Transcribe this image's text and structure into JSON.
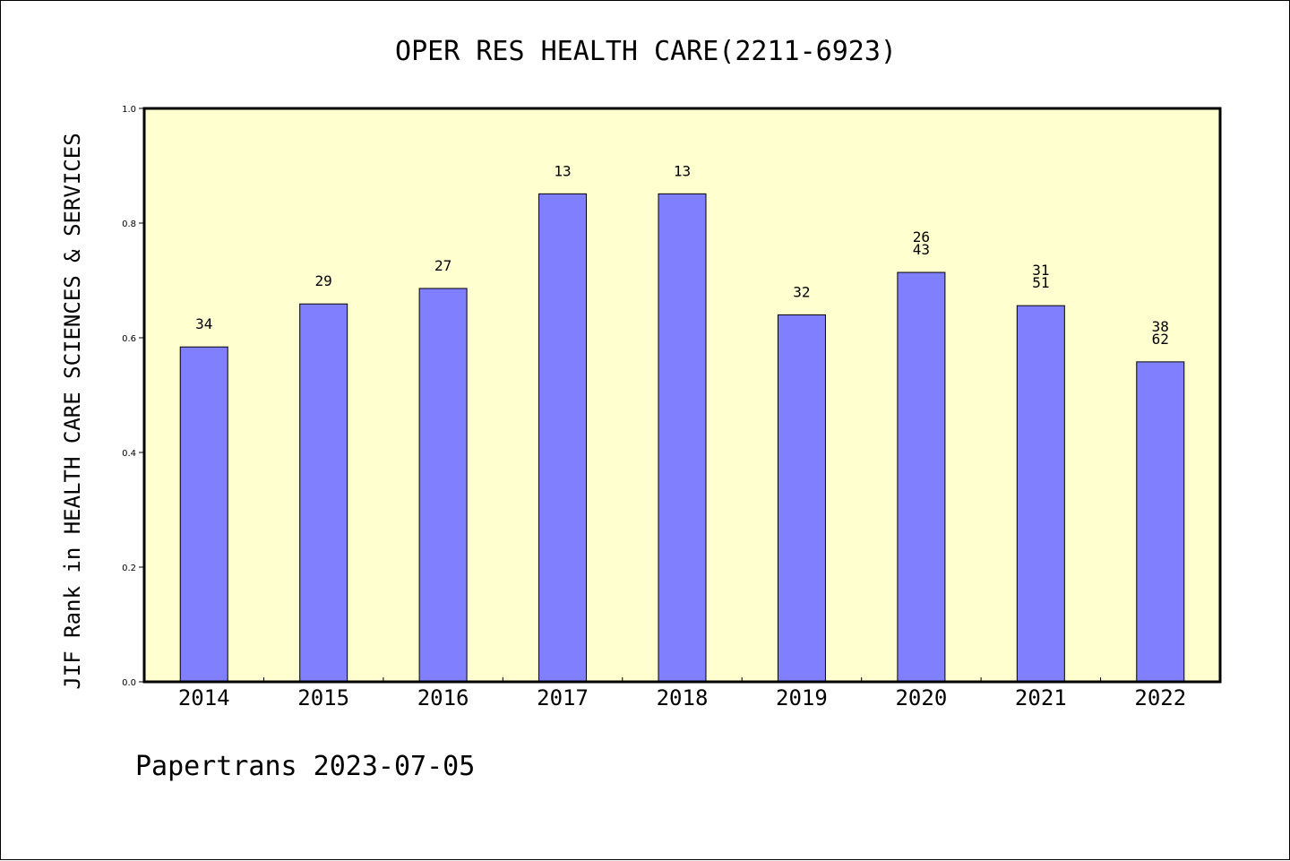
{
  "chart_data": {
    "type": "bar",
    "title": "OPER RES HEALTH CARE(2211-6923)",
    "ylabel": "JIF Rank in HEALTH CARE SCIENCES & SERVICES",
    "xlabel": "",
    "ylim": [
      0,
      1.0
    ],
    "yticks": [
      "0.0",
      "0.2",
      "0.4",
      "0.6",
      "0.8",
      "1.0"
    ],
    "categories": [
      "2014",
      "2015",
      "2016",
      "2017",
      "2018",
      "2019",
      "2020",
      "2021",
      "2022"
    ],
    "values": [
      0.584,
      0.659,
      0.686,
      0.851,
      0.851,
      0.64,
      0.714,
      0.656,
      0.558
    ],
    "labels": [
      [
        "34"
      ],
      [
        "29"
      ],
      [
        "27"
      ],
      [
        "13"
      ],
      [
        "13"
      ],
      [
        "32"
      ],
      [
        "26",
        "43"
      ],
      [
        "31",
        "51"
      ],
      [
        "38",
        "62"
      ]
    ],
    "grid": false,
    "colors": {
      "bar": "#8080ff",
      "plot_background": "#ffffd0",
      "axis": "#000000"
    }
  },
  "footer": "Papertrans 2023-07-05"
}
